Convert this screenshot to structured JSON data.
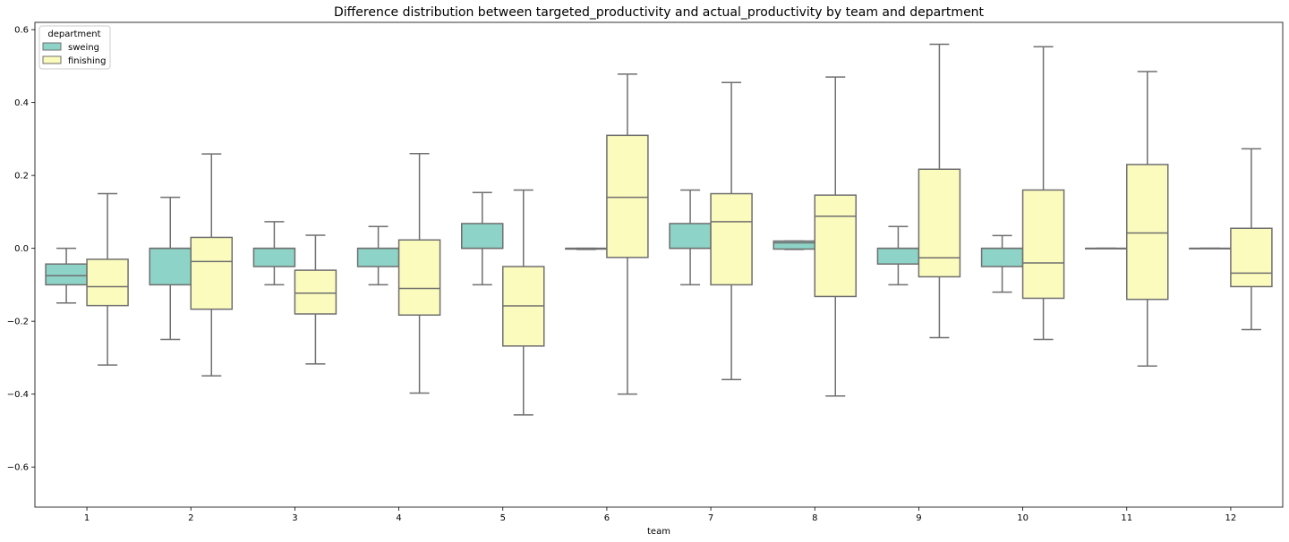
{
  "chart_data": {
    "type": "box",
    "title": "Difference distribution between targeted_productivity and actual_productivity by team and department",
    "xlabel": "team",
    "ylabel": "",
    "ylim": [
      -0.71,
      0.62
    ],
    "yticks": [
      -0.6,
      -0.4,
      -0.2,
      0.0,
      0.2,
      0.4,
      0.6
    ],
    "ytick_labels": [
      "−0.6",
      "−0.4",
      "−0.2",
      "0.0",
      "0.2",
      "0.4",
      "0.6"
    ],
    "categories": [
      "1",
      "2",
      "3",
      "4",
      "5",
      "6",
      "7",
      "8",
      "9",
      "10",
      "11",
      "12"
    ],
    "grid": false,
    "legend": {
      "title": "department",
      "position": "top-left",
      "entries": [
        "sweing",
        "finishing"
      ]
    },
    "series": [
      {
        "name": "sweing",
        "color": "#8dd3c7",
        "boxes": [
          {
            "whislo": -0.15,
            "q1": -0.1,
            "med": -0.075,
            "q3": -0.043,
            "whishi": 0.0
          },
          {
            "whislo": -0.25,
            "q1": -0.1,
            "med": 0.0,
            "q3": 0.0,
            "whishi": 0.14
          },
          {
            "whislo": -0.1,
            "q1": -0.05,
            "med": 0.0,
            "q3": 0.0,
            "whishi": 0.073
          },
          {
            "whislo": -0.1,
            "q1": -0.05,
            "med": 0.0,
            "q3": 0.0,
            "whishi": 0.06
          },
          {
            "whislo": -0.1,
            "q1": 0.0,
            "med": 0.0,
            "q3": 0.068,
            "whishi": 0.153
          },
          {
            "whislo": -0.003,
            "q1": -0.002,
            "med": 0.0,
            "q3": 0.0,
            "whishi": 0.0
          },
          {
            "whislo": -0.1,
            "q1": 0.0,
            "med": 0.0,
            "q3": 0.068,
            "whishi": 0.16
          },
          {
            "whislo": -0.003,
            "q1": -0.002,
            "med": 0.015,
            "q3": 0.02,
            "whishi": 0.02
          },
          {
            "whislo": -0.1,
            "q1": -0.043,
            "med": 0.0,
            "q3": 0.0,
            "whishi": 0.06
          },
          {
            "whislo": -0.12,
            "q1": -0.05,
            "med": 0.0,
            "q3": 0.0,
            "whishi": 0.035
          },
          {
            "whislo": 0.0,
            "q1": 0.0,
            "med": 0.0,
            "q3": 0.0,
            "whishi": 0.0
          },
          {
            "whislo": 0.0,
            "q1": 0.0,
            "med": 0.0,
            "q3": 0.0,
            "whishi": 0.0
          }
        ]
      },
      {
        "name": "finishing",
        "color": "#fbfbbd",
        "boxes": [
          {
            "whislo": -0.32,
            "q1": -0.157,
            "med": -0.105,
            "q3": -0.03,
            "whishi": 0.15
          },
          {
            "whislo": -0.35,
            "q1": -0.167,
            "med": -0.036,
            "q3": 0.03,
            "whishi": 0.259
          },
          {
            "whislo": -0.317,
            "q1": -0.18,
            "med": -0.123,
            "q3": -0.06,
            "whishi": 0.036
          },
          {
            "whislo": -0.397,
            "q1": -0.183,
            "med": -0.11,
            "q3": 0.023,
            "whishi": 0.26
          },
          {
            "whislo": -0.457,
            "q1": -0.268,
            "med": -0.158,
            "q3": -0.05,
            "whishi": 0.16
          },
          {
            "whislo": -0.4,
            "q1": -0.025,
            "med": 0.14,
            "q3": 0.31,
            "whishi": 0.478
          },
          {
            "whislo": -0.36,
            "q1": -0.1,
            "med": 0.073,
            "q3": 0.15,
            "whishi": 0.455
          },
          {
            "whislo": -0.405,
            "q1": -0.132,
            "med": 0.088,
            "q3": 0.146,
            "whishi": 0.47
          },
          {
            "whislo": -0.245,
            "q1": -0.078,
            "med": -0.026,
            "q3": 0.217,
            "whishi": 0.56
          },
          {
            "whislo": -0.25,
            "q1": -0.137,
            "med": -0.04,
            "q3": 0.16,
            "whishi": 0.553
          },
          {
            "whislo": -0.323,
            "q1": -0.14,
            "med": 0.042,
            "q3": 0.23,
            "whishi": 0.485
          },
          {
            "whislo": -0.223,
            "q1": -0.105,
            "med": -0.068,
            "q3": 0.055,
            "whishi": 0.273
          }
        ]
      }
    ]
  }
}
